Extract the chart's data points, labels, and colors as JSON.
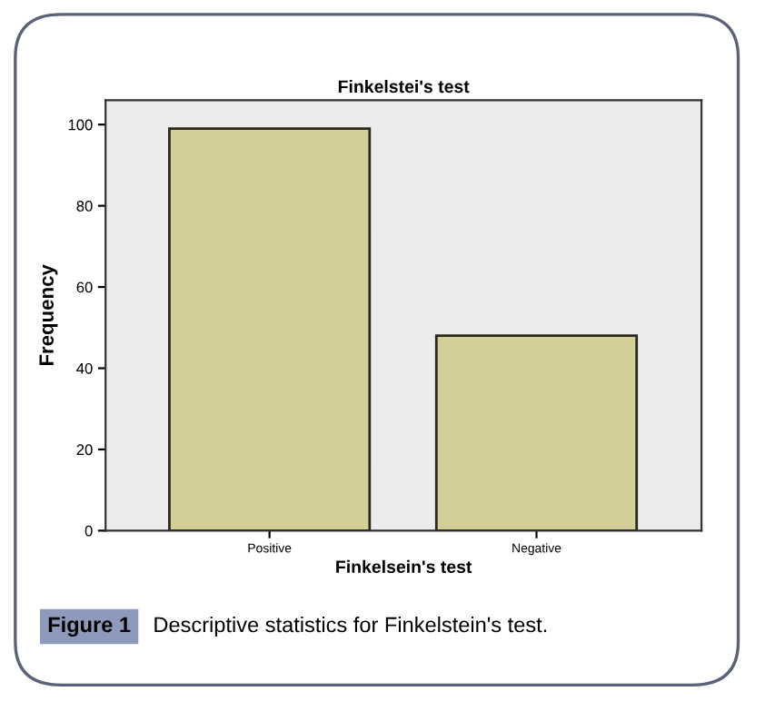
{
  "chart_data": {
    "type": "bar",
    "title": "Finkelstei's test",
    "xlabel": "Finkelsein's test",
    "ylabel": "Frequency",
    "categories": [
      "Positive",
      "Negative"
    ],
    "values": [
      99,
      48
    ],
    "color": "#d4ce98",
    "ylim": [
      0,
      106
    ],
    "yticks": [
      0,
      20,
      40,
      60,
      80,
      100
    ],
    "grid": false,
    "legend": false,
    "annotations": [
      "Figure 1",
      "Descriptive statistics for Finkelstein's test."
    ]
  }
}
